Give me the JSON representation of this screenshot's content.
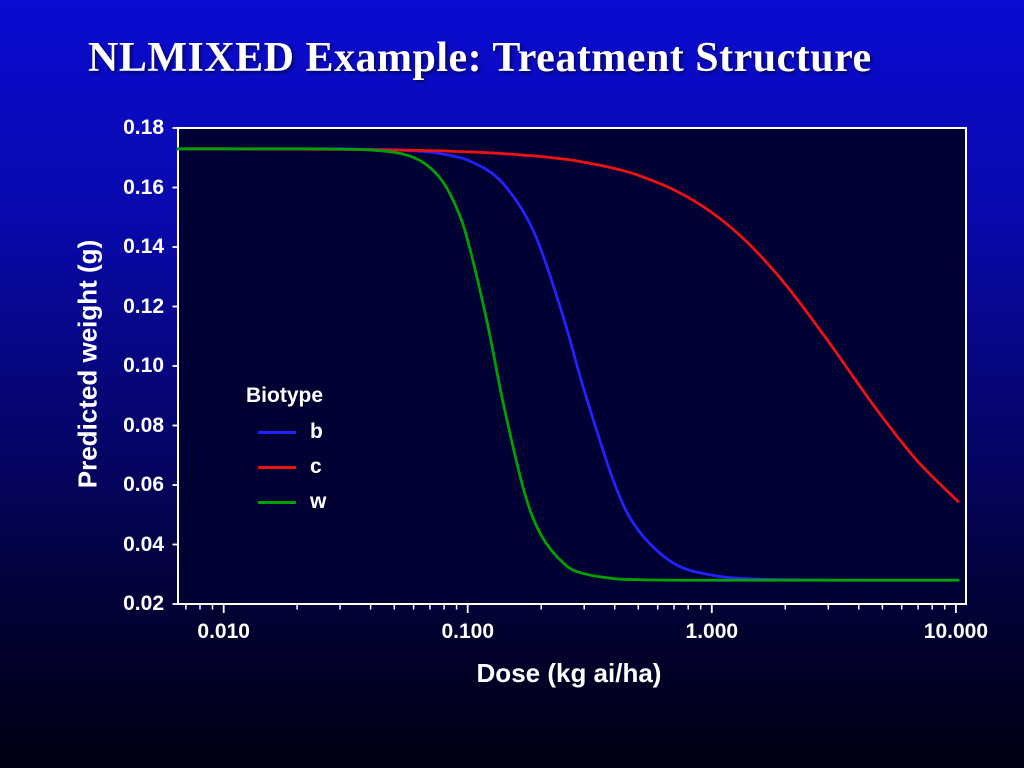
{
  "slide": {
    "title": "NLMIXED Example: Treatment Structure"
  },
  "chart_data": {
    "type": "line",
    "title": "",
    "xlabel": "Dose (kg ai/ha)",
    "ylabel": "Predicted weight (g)",
    "x_scale": "log",
    "xlim": [
      0.0065,
      11
    ],
    "ylim": [
      0.02,
      0.18
    ],
    "grid": false,
    "plot_background": "#010134",
    "axis_color": "#ffffff",
    "text_color": "#ffffff",
    "x_ticks": [
      0.01,
      0.1,
      1,
      10
    ],
    "x_tick_labels": [
      "0.010",
      "0.100",
      "1.000",
      "10.000"
    ],
    "y_ticks": [
      0.02,
      0.04,
      0.06,
      0.08,
      0.1,
      0.12,
      0.14,
      0.16,
      0.18
    ],
    "y_tick_labels": [
      "0.02",
      "0.04",
      "0.06",
      "0.08",
      "0.10",
      "0.12",
      "0.14",
      "0.16",
      "0.18"
    ],
    "legend": {
      "title": "Biotype",
      "position": "inside-left"
    },
    "x": [
      0.0065,
      0.01,
      0.014,
      0.02,
      0.03,
      0.04,
      0.05,
      0.06,
      0.07,
      0.08,
      0.09,
      0.1,
      0.12,
      0.14,
      0.17,
      0.2,
      0.25,
      0.3,
      0.4,
      0.5,
      0.7,
      1,
      1.4,
      2,
      3,
      4,
      5,
      7,
      10.2
    ],
    "series": [
      {
        "name": "b",
        "color": "#2222ff",
        "values": [
          0.173,
          0.173,
          0.173,
          0.173,
          0.173,
          0.1728,
          0.1727,
          0.1723,
          0.1719,
          0.1712,
          0.1703,
          0.1692,
          0.1659,
          0.1612,
          0.1515,
          0.1389,
          0.1147,
          0.0918,
          0.0603,
          0.0448,
          0.0336,
          0.0297,
          0.0285,
          0.0282,
          0.028,
          0.028,
          0.028,
          0.028,
          0.028
        ]
      },
      {
        "name": "c",
        "color": "#ee1111",
        "values": [
          0.173,
          0.173,
          0.1729,
          0.1729,
          0.1728,
          0.1727,
          0.1726,
          0.1725,
          0.1724,
          0.1723,
          0.1721,
          0.172,
          0.1717,
          0.1714,
          0.1709,
          0.1704,
          0.1695,
          0.1685,
          0.1664,
          0.1641,
          0.1592,
          0.1516,
          0.1415,
          0.1275,
          0.1083,
          0.0937,
          0.0828,
          0.0678,
          0.0545
        ]
      },
      {
        "name": "w",
        "color": "#00a000",
        "values": [
          0.173,
          0.173,
          0.173,
          0.173,
          0.1729,
          0.1726,
          0.1718,
          0.1701,
          0.1667,
          0.1613,
          0.1531,
          0.1422,
          0.1148,
          0.0872,
          0.0581,
          0.0431,
          0.0333,
          0.0302,
          0.0285,
          0.0282,
          0.028,
          0.028,
          0.028,
          0.028,
          0.028,
          0.028,
          0.028,
          0.028,
          0.028
        ]
      }
    ]
  }
}
